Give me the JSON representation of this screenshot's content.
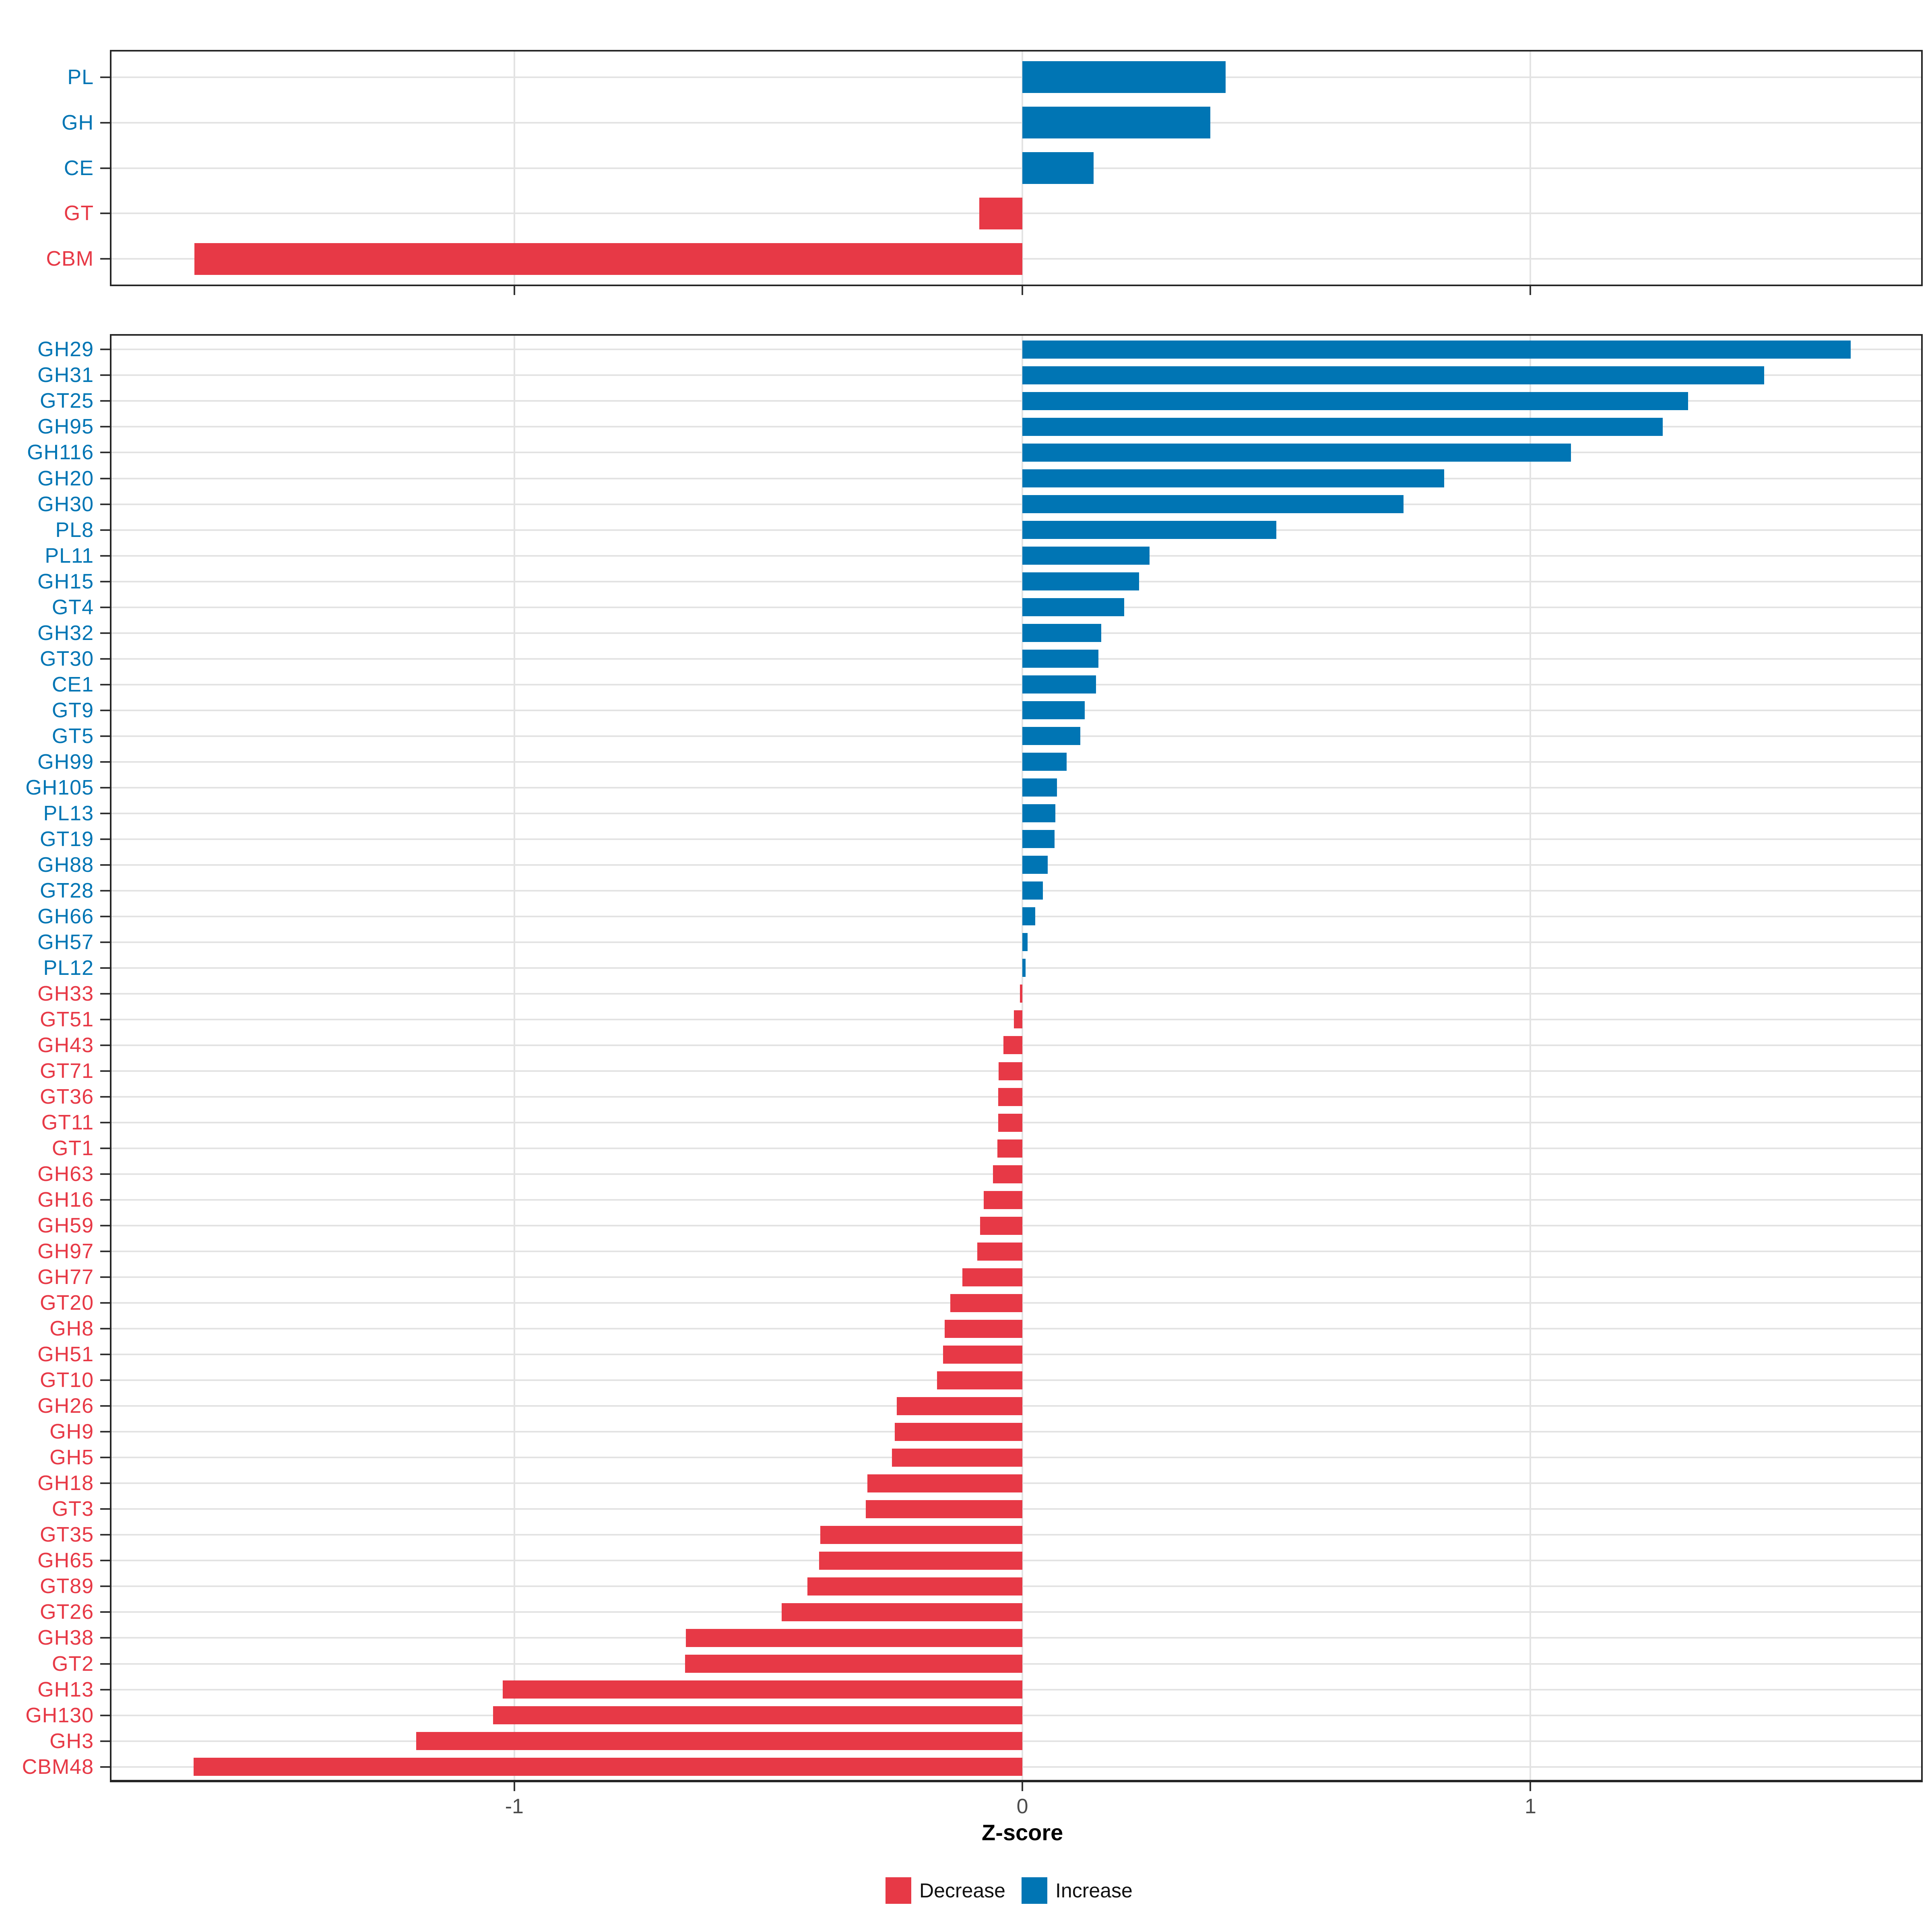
{
  "xlabel": "Z-score",
  "x_tick_labels": [
    "-1",
    "0",
    "1"
  ],
  "colors": {
    "increase": "#0075B4",
    "decrease": "#E73946",
    "grid": "#e3e3e3",
    "panel_border": "#262626",
    "tick": "#333333",
    "tick_label": "#4d4d4d"
  },
  "legend": {
    "items": [
      {
        "label": "Decrease",
        "color": "#E73946"
      },
      {
        "label": "Increase",
        "color": "#0075B4"
      }
    ]
  },
  "chart_data": [
    {
      "id": "cazyme-class-summary",
      "type": "bar",
      "orientation": "horizontal",
      "grid": true,
      "legend_position": "bottom",
      "xlabel": "Z-score",
      "xlim": [
        -1.8,
        1.77
      ],
      "x_ticks": [
        -1,
        0,
        1
      ],
      "categories": [
        "PL",
        "GH",
        "CE",
        "GT",
        "CBM"
      ],
      "values": [
        0.4,
        0.37,
        0.14,
        -0.085,
        -1.63
      ]
    },
    {
      "id": "cazyme-family-detail",
      "type": "bar",
      "orientation": "horizontal",
      "grid": true,
      "xlabel": "Z-score",
      "xlim": [
        -1.8,
        1.77
      ],
      "x_ticks": [
        -1,
        0,
        1
      ],
      "categories": [
        "GH29",
        "GH31",
        "GT25",
        "GH95",
        "GH116",
        "GH20",
        "GH30",
        "PL8",
        "PL11",
        "GH15",
        "GT4",
        "GH32",
        "GT30",
        "CE1",
        "GT9",
        "GT5",
        "GH99",
        "GH105",
        "PL13",
        "GT19",
        "GH88",
        "GT28",
        "GH66",
        "GH57",
        "PL12",
        "GH33",
        "GT51",
        "GH43",
        "GT71",
        "GT36",
        "GT11",
        "GT1",
        "GH63",
        "GH16",
        "GH59",
        "GH97",
        "GH77",
        "GT20",
        "GH8",
        "GH51",
        "GT10",
        "GH26",
        "GH9",
        "GH5",
        "GH18",
        "GT3",
        "GT35",
        "GH65",
        "GT89",
        "GT26",
        "GH38",
        "GT2",
        "GH13",
        "GH130",
        "GH3",
        "CBM48"
      ],
      "values": [
        1.63,
        1.46,
        1.31,
        1.26,
        1.08,
        0.83,
        0.75,
        0.5,
        0.25,
        0.23,
        0.2,
        0.155,
        0.15,
        0.145,
        0.123,
        0.114,
        0.087,
        0.068,
        0.065,
        0.063,
        0.05,
        0.04,
        0.025,
        0.01,
        0.006,
        -0.005,
        -0.017,
        -0.037,
        -0.047,
        -0.048,
        -0.048,
        -0.049,
        -0.058,
        -0.076,
        -0.083,
        -0.089,
        -0.118,
        -0.142,
        -0.153,
        -0.156,
        -0.168,
        -0.247,
        -0.251,
        -0.257,
        -0.305,
        -0.308,
        -0.398,
        -0.4,
        -0.423,
        -0.474,
        -0.662,
        -0.664,
        -1.023,
        -1.042,
        -1.193,
        -1.631
      ]
    }
  ]
}
